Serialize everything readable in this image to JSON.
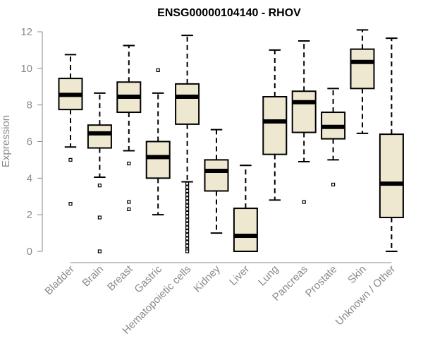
{
  "chart_data": {
    "type": "box",
    "title": "ENSG00000104140 - RHOV",
    "xlabel": "",
    "ylabel": "Expression",
    "ylim": [
      0,
      12
    ],
    "yticks": [
      0,
      2,
      4,
      6,
      8,
      10,
      12
    ],
    "colors": {
      "box_fill": "#efe8d0",
      "stroke": "#000000",
      "axis": "#8a8a8a"
    },
    "categories": [
      "Bladder",
      "Brain",
      "Breast",
      "Gastric",
      "Hematopoietic cells",
      "Kidney",
      "Liver",
      "Lung",
      "Pancreas",
      "Prostate",
      "Skin",
      "Unknown / Other"
    ],
    "boxes": [
      {
        "category": "Bladder",
        "min": 5.7,
        "q1": 7.75,
        "median": 8.55,
        "q3": 9.45,
        "max": 10.75,
        "outliers": [
          5.0,
          2.6
        ]
      },
      {
        "category": "Brain",
        "min": 4.05,
        "q1": 5.65,
        "median": 6.45,
        "q3": 6.9,
        "max": 8.65,
        "outliers": [
          3.6,
          1.85,
          0.0
        ]
      },
      {
        "category": "Breast",
        "min": 5.5,
        "q1": 7.6,
        "median": 8.45,
        "q3": 9.25,
        "max": 11.25,
        "outliers": [
          4.8,
          2.7,
          2.3
        ]
      },
      {
        "category": "Gastric",
        "min": 2.0,
        "q1": 4.0,
        "median": 5.15,
        "q3": 6.0,
        "max": 8.65,
        "outliers": [
          9.9
        ]
      },
      {
        "category": "Hematopoietic cells",
        "min": 3.8,
        "q1": 6.95,
        "median": 8.45,
        "q3": 9.15,
        "max": 11.8,
        "outliers": [
          3.7,
          3.5,
          3.3,
          3.1,
          2.9,
          2.7,
          2.5,
          2.3,
          2.1,
          1.9,
          1.7,
          1.5,
          1.3,
          1.1,
          0.9,
          0.7,
          0.5,
          0.3,
          0.1,
          0.0
        ]
      },
      {
        "category": "Kidney",
        "min": 1.0,
        "q1": 3.3,
        "median": 4.4,
        "q3": 5.0,
        "max": 6.65,
        "outliers": []
      },
      {
        "category": "Liver",
        "min": 0.0,
        "q1": 0.0,
        "median": 0.85,
        "q3": 2.35,
        "max": 4.7,
        "outliers": []
      },
      {
        "category": "Lung",
        "min": 2.8,
        "q1": 5.3,
        "median": 7.1,
        "q3": 8.45,
        "max": 11.0,
        "outliers": []
      },
      {
        "category": "Pancreas",
        "min": 4.9,
        "q1": 6.5,
        "median": 8.15,
        "q3": 8.75,
        "max": 11.5,
        "outliers": [
          2.7
        ]
      },
      {
        "category": "Prostate",
        "min": 5.0,
        "q1": 6.15,
        "median": 6.8,
        "q3": 7.6,
        "max": 8.9,
        "outliers": [
          3.65
        ]
      },
      {
        "category": "Skin",
        "min": 6.45,
        "q1": 8.9,
        "median": 10.35,
        "q3": 11.05,
        "max": 12.1,
        "outliers": []
      },
      {
        "category": "Unknown / Other",
        "min": 0.0,
        "q1": 1.85,
        "median": 3.7,
        "q3": 6.4,
        "max": 11.65,
        "outliers": []
      }
    ]
  }
}
